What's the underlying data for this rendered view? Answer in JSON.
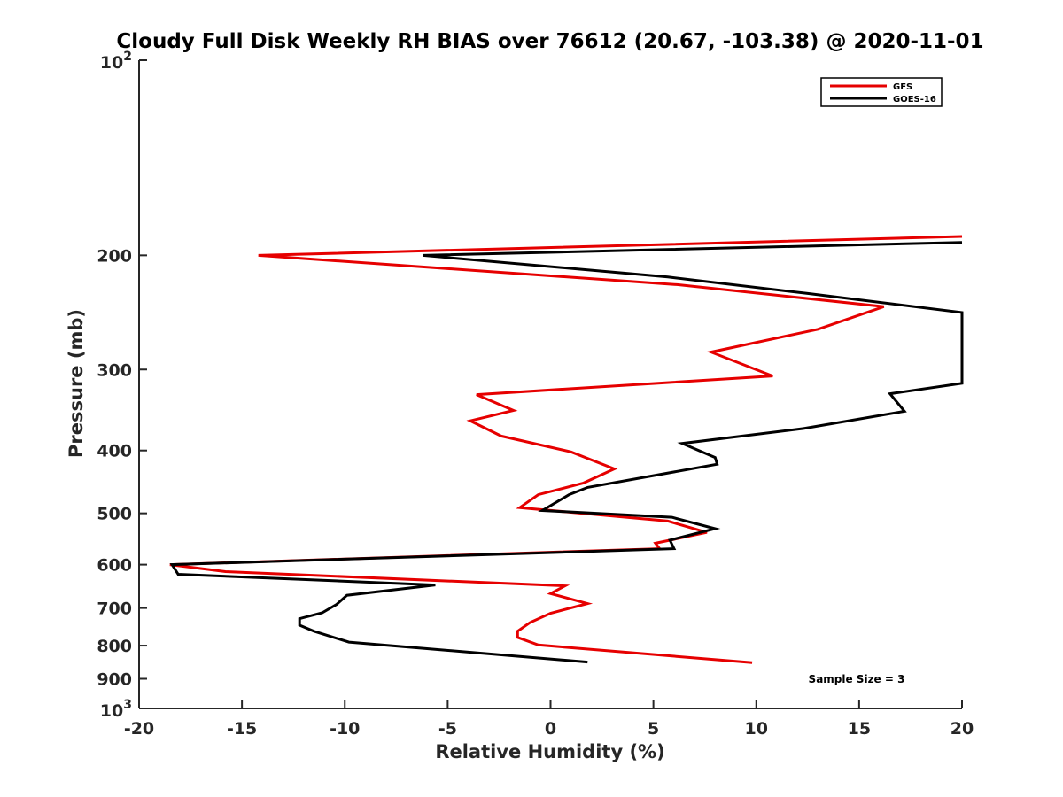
{
  "chart_data": {
    "type": "line",
    "title": "Cloudy Full Disk Weekly RH BIAS over 76612 (20.67, -103.38) @ 2020-11-01",
    "xlabel": "Relative Humidity (%)",
    "ylabel": "Pressure (mb)",
    "xlim": [
      -20,
      20
    ],
    "ylim": [
      100,
      1000
    ],
    "yscale": "log",
    "y_reversed": true,
    "x_ticks": [
      {
        "value": -20,
        "label": "-20"
      },
      {
        "value": -15,
        "label": "-15"
      },
      {
        "value": -10,
        "label": "-10"
      },
      {
        "value": -5,
        "label": "-5"
      },
      {
        "value": 0,
        "label": "0"
      },
      {
        "value": 5,
        "label": "5"
      },
      {
        "value": 10,
        "label": "10"
      },
      {
        "value": 15,
        "label": "15"
      },
      {
        "value": 20,
        "label": "20"
      }
    ],
    "y_ticks": [
      {
        "value": 100,
        "base": "10",
        "exp": "2"
      },
      {
        "value": 200,
        "label": "200"
      },
      {
        "value": 300,
        "label": "300"
      },
      {
        "value": 400,
        "label": "400"
      },
      {
        "value": 500,
        "label": "500"
      },
      {
        "value": 600,
        "label": "600"
      },
      {
        "value": 700,
        "label": "700"
      },
      {
        "value": 800,
        "label": "800"
      },
      {
        "value": 900,
        "label": "900"
      },
      {
        "value": 1000,
        "base": "10",
        "exp": "3"
      }
    ],
    "legend": {
      "position": "top-right",
      "entries": [
        "GFS",
        "GOES-16"
      ]
    },
    "annotation": "Sample Size = 3",
    "series": [
      {
        "name": "GFS",
        "color": "#e60000",
        "points": [
          [
            20,
            187
          ],
          [
            -14.2,
            200
          ],
          [
            6.2,
            222
          ],
          [
            16.2,
            240
          ],
          [
            13,
            260
          ],
          [
            7.8,
            282
          ],
          [
            10.8,
            307
          ],
          [
            -3.6,
            328
          ],
          [
            -1.8,
            347
          ],
          [
            -3.9,
            360
          ],
          [
            -2.4,
            380
          ],
          [
            1,
            402
          ],
          [
            3.1,
            427
          ],
          [
            1.6,
            449
          ],
          [
            -0.6,
            468
          ],
          [
            -1.5,
            490
          ],
          [
            5.7,
            514
          ],
          [
            7.6,
            535
          ],
          [
            5.1,
            556
          ],
          [
            5.3,
            567
          ],
          [
            -18.5,
            600
          ],
          [
            -15.8,
            615
          ],
          [
            0.7,
            647
          ],
          [
            0,
            665
          ],
          [
            1.8,
            689
          ],
          [
            0,
            713
          ],
          [
            -1,
            737
          ],
          [
            -1.6,
            760
          ],
          [
            -1.6,
            777
          ],
          [
            -0.6,
            798
          ],
          [
            9.8,
            850
          ]
        ]
      },
      {
        "name": "GOES-16",
        "color": "#000000",
        "points": [
          [
            20,
            191
          ],
          [
            -6.2,
            200
          ],
          [
            5.7,
            216
          ],
          [
            12.5,
            229
          ],
          [
            20,
            245
          ],
          [
            20,
            315
          ],
          [
            16.5,
            327
          ],
          [
            17.2,
            348
          ],
          [
            12.3,
            370
          ],
          [
            6.4,
            390
          ],
          [
            8,
            410
          ],
          [
            8.1,
            420
          ],
          [
            1.8,
            456
          ],
          [
            0.9,
            468
          ],
          [
            -0.4,
            495
          ],
          [
            5.9,
            507
          ],
          [
            8,
            528
          ],
          [
            5.8,
            550
          ],
          [
            6,
            567
          ],
          [
            -18.4,
            600
          ],
          [
            -18.1,
            621
          ],
          [
            -5.6,
            645
          ],
          [
            -9.9,
            669
          ],
          [
            -10.4,
            691
          ],
          [
            -11.1,
            712
          ],
          [
            -12.2,
            727
          ],
          [
            -12.2,
            744
          ],
          [
            -11.5,
            760
          ],
          [
            -9.8,
            790
          ],
          [
            1.8,
            848
          ]
        ]
      }
    ]
  }
}
